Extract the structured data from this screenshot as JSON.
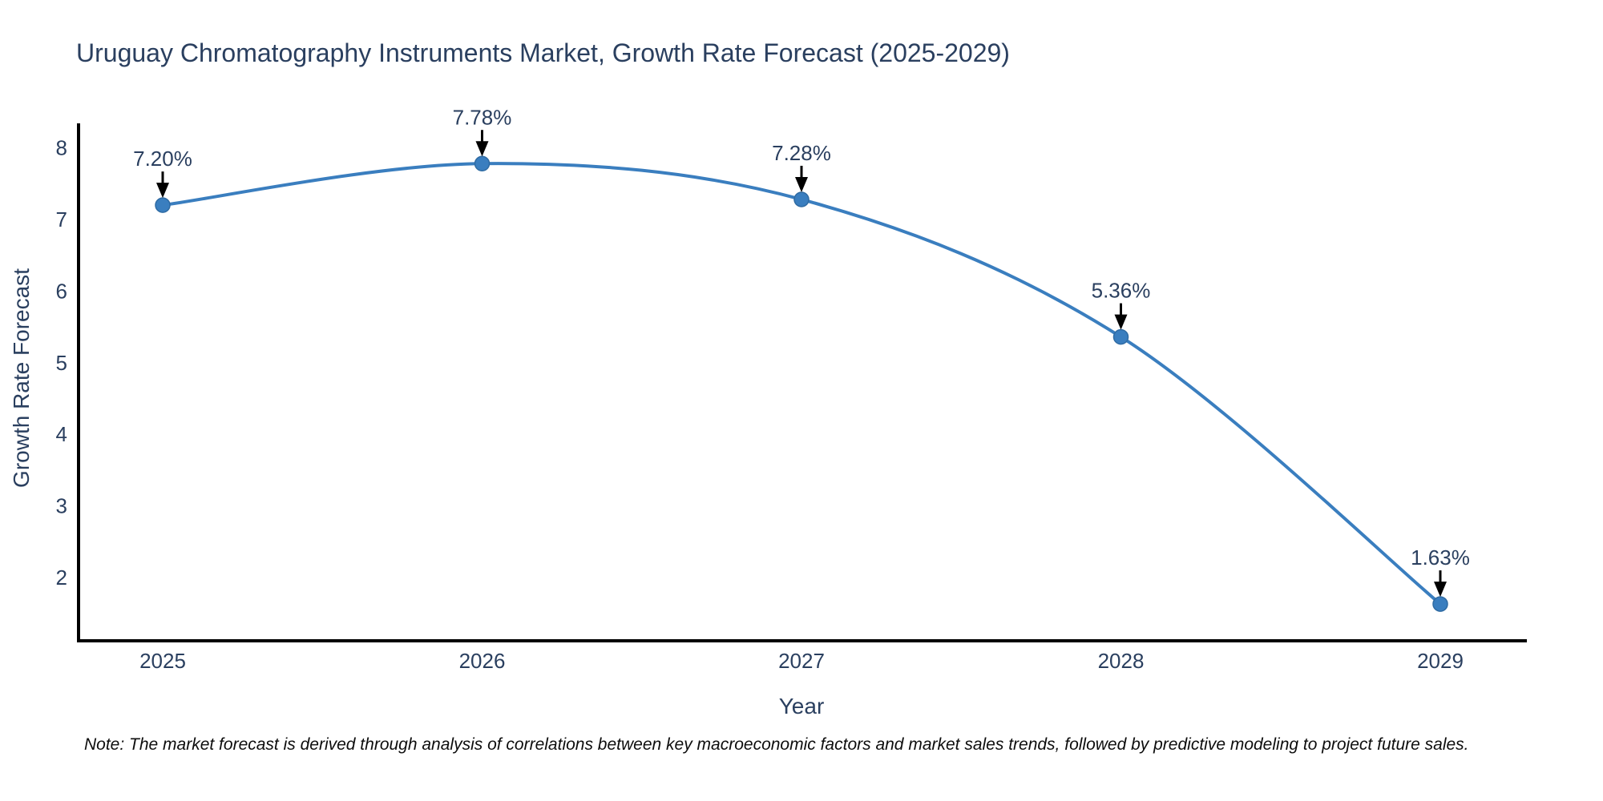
{
  "note": "Note: The market forecast is derived through analysis of correlations between key macroeconomic factors and market sales trends, followed by predictive modeling to project future sales.",
  "chart_data": {
    "type": "line",
    "line_shape": "spline",
    "title": "Uruguay Chromatography Instruments Market, Growth Rate Forecast (2025-2029)",
    "xlabel": "Year",
    "ylabel": "Growth Rate Forecast",
    "categories": [
      "2025",
      "2026",
      "2027",
      "2028",
      "2029"
    ],
    "values": [
      7.2,
      7.78,
      7.28,
      5.36,
      1.63
    ],
    "point_labels": [
      "7.20%",
      "7.78%",
      "7.28%",
      "5.36%",
      "1.63%"
    ],
    "yticks": [
      2,
      3,
      4,
      5,
      6,
      7,
      8
    ],
    "ylim": [
      1.3,
      8.35
    ],
    "grid": false,
    "legend": "none",
    "annotations": "data labels with downward arrows pointing at each marker",
    "colors": {
      "line": "#3a7ebf",
      "marker": "#3a7ebf",
      "marker_edge": "#2f6ba3",
      "arrow": "#000000",
      "label_text": "#2a3f5f",
      "tick_text": "#2a3f5f",
      "axis_title_text": "#2a3f5f",
      "title_text": "#2a3f5f",
      "axis_line": "#000000",
      "background": "#ffffff"
    }
  }
}
